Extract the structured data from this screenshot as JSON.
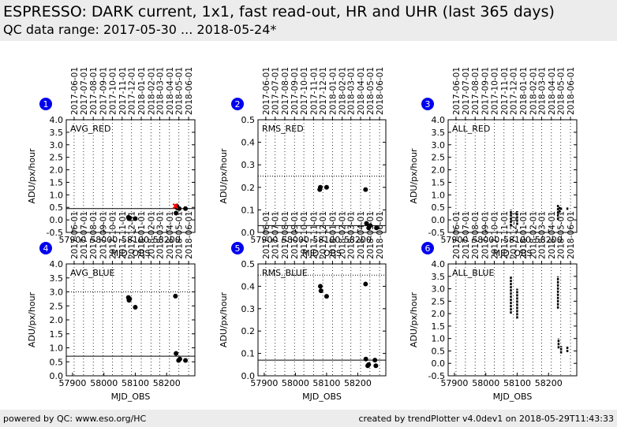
{
  "header": {
    "title": "ESPRESSO: DARK current, 1x1, fast read-out, HR and UHR (last 365 days)",
    "subtitle": "QC data range: 2017-05-30 ... 2018-05-24*"
  },
  "footer": {
    "left": "powered by QC: www.eso.org/HC",
    "right": "created by trendPlotter v4.0dev1 on 2018-05-29T11:43:33"
  },
  "date_ticks": [
    {
      "label": "2017-06-01",
      "mjd": 57905
    },
    {
      "label": "2017-07-01",
      "mjd": 57935
    },
    {
      "label": "2017-08-01",
      "mjd": 57966
    },
    {
      "label": "2017-09-01",
      "mjd": 57997
    },
    {
      "label": "2017-10-01",
      "mjd": 58027
    },
    {
      "label": "2017-11-01",
      "mjd": 58058
    },
    {
      "label": "2017-12-01",
      "mjd": 58088
    },
    {
      "label": "2018-01-01",
      "mjd": 58119
    },
    {
      "label": "2018-02-01",
      "mjd": 58150
    },
    {
      "label": "2018-03-01",
      "mjd": 58178
    },
    {
      "label": "2018-04-01",
      "mjd": 58209
    },
    {
      "label": "2018-05-01",
      "mjd": 58239
    },
    {
      "label": "2018-06-01",
      "mjd": 58270
    }
  ],
  "colors": {
    "points": "#000000",
    "highlight": "#ff0000",
    "badge": "#0000ee",
    "panel_frame": "#000000"
  },
  "chart_data": [
    {
      "id": "1",
      "type": "scatter",
      "label": "AVG_RED",
      "xlabel": "MJD_OBS",
      "ylabel": "ADU/px/hour",
      "xlim": [
        57880,
        58290
      ],
      "ylim": [
        -0.5,
        4.0
      ],
      "yticks": [
        "-0.5",
        "0.0",
        "0.5",
        "1.0",
        "1.5",
        "2.0",
        "2.5",
        "3.0",
        "3.5",
        "4.0"
      ],
      "xticks": [
        "57900",
        "58000",
        "58100",
        "58200"
      ],
      "ref_line": 0.45,
      "dotted_line": null,
      "grid": true,
      "points": [
        {
          "x": 58078,
          "y": 0.1
        },
        {
          "x": 58080,
          "y": 0.05
        },
        {
          "x": 58082,
          "y": 0.08
        },
        {
          "x": 58100,
          "y": 0.05
        },
        {
          "x": 58230,
          "y": 0.27
        },
        {
          "x": 58232,
          "y": 0.55
        },
        {
          "x": 58234,
          "y": 0.48
        },
        {
          "x": 58240,
          "y": 0.45
        },
        {
          "x": 58260,
          "y": 0.45
        }
      ],
      "highlight_points": [
        {
          "x": 58228,
          "y": 0.55
        }
      ],
      "segments": []
    },
    {
      "id": "2",
      "type": "scatter",
      "label": "RMS_RED",
      "xlabel": "MJD_OBS",
      "ylabel": "ADU/px/hour",
      "xlim": [
        57880,
        58290
      ],
      "ylim": [
        0.0,
        0.5
      ],
      "yticks": [
        "0.0",
        "0.1",
        "0.2",
        "0.3",
        "0.4",
        "0.5"
      ],
      "xticks": [
        "57900",
        "58000",
        "58100",
        "58200"
      ],
      "ref_line": 0.03,
      "dotted_line": 0.25,
      "grid": true,
      "points": [
        {
          "x": 58078,
          "y": 0.19
        },
        {
          "x": 58080,
          "y": 0.2
        },
        {
          "x": 58100,
          "y": 0.2
        },
        {
          "x": 58225,
          "y": 0.19
        },
        {
          "x": 58228,
          "y": 0.04
        },
        {
          "x": 58235,
          "y": 0.02
        },
        {
          "x": 58240,
          "y": 0.03
        },
        {
          "x": 58260,
          "y": 0.02
        }
      ],
      "highlight_points": [],
      "segments": []
    },
    {
      "id": "3",
      "type": "scatter",
      "label": "ALL_RED",
      "xlabel": "MJD_OBS",
      "ylabel": "ADU/px/hour",
      "xlim": [
        57880,
        58290
      ],
      "ylim": [
        -0.5,
        4.0
      ],
      "yticks": [
        "-0.5",
        "0.0",
        "0.5",
        "1.0",
        "1.5",
        "2.0",
        "2.5",
        "3.0",
        "3.5",
        "4.0"
      ],
      "xticks": [
        "57900",
        "58000",
        "58100",
        "58200"
      ],
      "ref_line": null,
      "dotted_line": null,
      "grid": true,
      "points": [],
      "highlight_points": [],
      "segments": [
        {
          "x": 58080,
          "y1": -0.25,
          "y2": 0.4
        },
        {
          "x": 58100,
          "y1": -0.2,
          "y2": 0.35
        },
        {
          "x": 58230,
          "y1": 0.0,
          "y2": 0.6
        },
        {
          "x": 58235,
          "y1": 0.3,
          "y2": 0.55
        },
        {
          "x": 58240,
          "y1": 0.4,
          "y2": 0.5
        },
        {
          "x": 58260,
          "y1": 0.4,
          "y2": 0.5
        }
      ]
    },
    {
      "id": "4",
      "type": "scatter",
      "label": "AVG_BLUE",
      "xlabel": "MJD_OBS",
      "ylabel": "ADU/px/hour",
      "xlim": [
        57880,
        58290
      ],
      "ylim": [
        0.0,
        4.0
      ],
      "yticks": [
        "0.0",
        "0.5",
        "1.0",
        "1.5",
        "2.0",
        "2.5",
        "3.0",
        "3.5",
        "4.0"
      ],
      "xticks": [
        "57900",
        "58000",
        "58100",
        "58200"
      ],
      "ref_line": 0.7,
      "dotted_line": 3.0,
      "grid": true,
      "points": [
        {
          "x": 58078,
          "y": 2.8
        },
        {
          "x": 58080,
          "y": 2.7
        },
        {
          "x": 58082,
          "y": 2.75
        },
        {
          "x": 58100,
          "y": 2.45
        },
        {
          "x": 58228,
          "y": 2.85
        },
        {
          "x": 58230,
          "y": 0.8
        },
        {
          "x": 58238,
          "y": 0.55
        },
        {
          "x": 58242,
          "y": 0.6
        },
        {
          "x": 58260,
          "y": 0.55
        }
      ],
      "highlight_points": [],
      "segments": []
    },
    {
      "id": "5",
      "type": "scatter",
      "label": "RMS_BLUE",
      "xlabel": "MJD_OBS",
      "ylabel": "ADU/px/hour",
      "xlim": [
        57880,
        58290
      ],
      "ylim": [
        0.0,
        0.5
      ],
      "yticks": [
        "0.0",
        "0.1",
        "0.2",
        "0.3",
        "0.4",
        "0.5"
      ],
      "xticks": [
        "57900",
        "58000",
        "58100",
        "58200"
      ],
      "ref_line": 0.07,
      "dotted_line": 0.45,
      "grid": true,
      "points": [
        {
          "x": 58080,
          "y": 0.4
        },
        {
          "x": 58082,
          "y": 0.38
        },
        {
          "x": 58100,
          "y": 0.355
        },
        {
          "x": 58225,
          "y": 0.41
        },
        {
          "x": 58226,
          "y": 0.075
        },
        {
          "x": 58232,
          "y": 0.045
        },
        {
          "x": 58235,
          "y": 0.05
        },
        {
          "x": 58255,
          "y": 0.07
        },
        {
          "x": 58258,
          "y": 0.045
        }
      ],
      "highlight_points": [],
      "segments": []
    },
    {
      "id": "6",
      "type": "scatter",
      "label": "ALL_BLUE",
      "xlabel": "MJD_OBS",
      "ylabel": "ADU/px/hour",
      "xlim": [
        57880,
        58290
      ],
      "ylim": [
        -0.5,
        4.0
      ],
      "yticks": [
        "-0.5",
        "0.0",
        "0.5",
        "1.0",
        "1.5",
        "2.0",
        "2.5",
        "3.0",
        "3.5",
        "4.0"
      ],
      "xticks": [
        "57900",
        "58000",
        "58100",
        "58200"
      ],
      "ref_line": null,
      "dotted_line": null,
      "grid": true,
      "points": [],
      "highlight_points": [],
      "segments": [
        {
          "x": 58080,
          "y1": 2.0,
          "y2": 3.5
        },
        {
          "x": 58100,
          "y1": 1.8,
          "y2": 3.0
        },
        {
          "x": 58230,
          "y1": 2.2,
          "y2": 3.5
        },
        {
          "x": 58232,
          "y1": 0.6,
          "y2": 1.0
        },
        {
          "x": 58240,
          "y1": 0.4,
          "y2": 0.7
        },
        {
          "x": 58260,
          "y1": 0.45,
          "y2": 0.7
        }
      ]
    }
  ]
}
